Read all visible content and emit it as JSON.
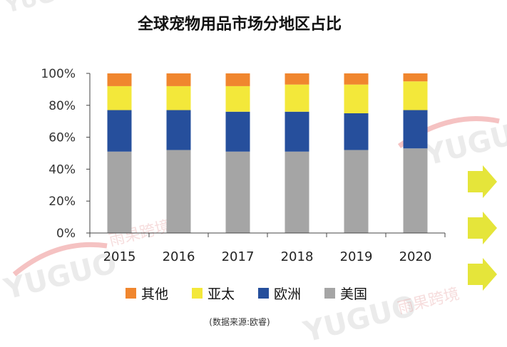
{
  "chart_data": {
    "type": "bar",
    "stacked": true,
    "title": "全球宠物用品市场分地区占比",
    "categories": [
      "2015",
      "2016",
      "2017",
      "2018",
      "2019",
      "2020"
    ],
    "series": [
      {
        "name": "美国",
        "color": "#a5a5a5",
        "values": [
          51,
          52,
          51,
          51,
          52,
          53
        ]
      },
      {
        "name": "欧洲",
        "color": "#264f9c",
        "values": [
          26,
          25,
          25,
          25,
          23,
          24
        ]
      },
      {
        "name": "亚太",
        "color": "#f3e83a",
        "values": [
          15,
          15,
          16,
          17,
          18,
          18
        ]
      },
      {
        "name": "其他",
        "color": "#f0862e",
        "values": [
          8,
          8,
          8,
          7,
          7,
          5
        ]
      }
    ],
    "y_ticks": [
      "0%",
      "20%",
      "40%",
      "60%",
      "80%",
      "100%"
    ],
    "ylim": [
      0,
      100
    ],
    "xlabel": "",
    "ylabel": "",
    "legend_position": "bottom",
    "legend_order": [
      "其他",
      "亚太",
      "欧洲",
      "美国"
    ],
    "source": "(数据来源:欧睿)"
  },
  "watermark": {
    "brand": "YUGUO",
    "brand_cn": "雨果跨境"
  },
  "decor": {
    "arrow_color": "#e5e53a",
    "swoosh_color": "#e25050"
  }
}
